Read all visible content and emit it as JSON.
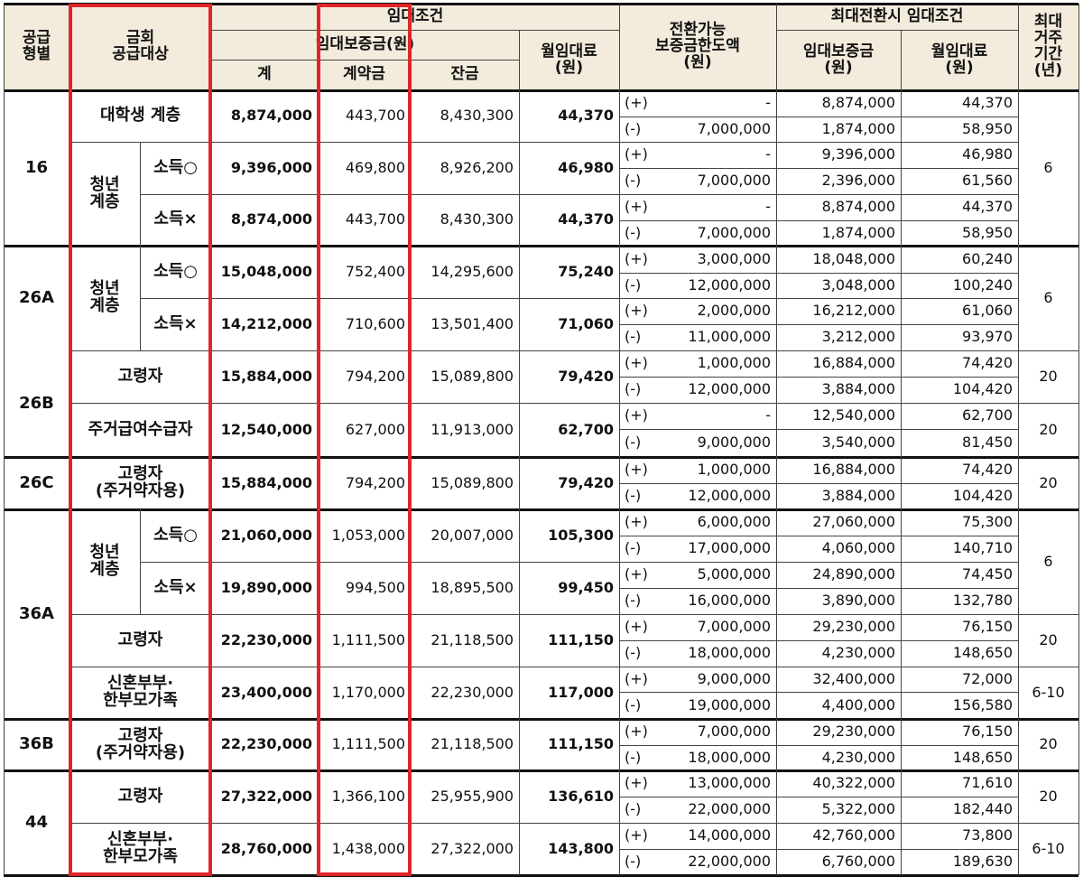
{
  "headers": {
    "supply_type": "공급\n형별",
    "supply_target": "금회\n공급대상",
    "lease_conditions": "임대조건",
    "deposit": "임대보증금(원)",
    "total": "계",
    "down_payment": "계약금",
    "balance": "잔금",
    "monthly_rent": "월임대료\n(원)",
    "convertible_limit": "전환가능\n보증금한도액\n(원)",
    "max_conversion": "최대전환시  임대조건",
    "conv_deposit": "임대보증금\n(원)",
    "conv_rent": "월임대료\n(원)",
    "max_period": "최대\n거주\n기간\n(년)"
  },
  "type_labels": {
    "t16": "16",
    "t26a": "26A",
    "t26b": "26B",
    "t26c": "26C",
    "t36a": "36A",
    "t36b": "36B",
    "t44": "44"
  },
  "target_labels": {
    "college": "대학생  계층",
    "youth": "청년\n계층",
    "income_yes": "소득○",
    "income_no": "소득×",
    "elderly": "고령자",
    "housing_benefit": "주거급여수급자",
    "elderly_housing": "고령자\n(주거약자용)",
    "newlywed": "신혼부부·\n한부모가족"
  },
  "groups": [
    {
      "total": "8,874,000",
      "down": "443,700",
      "balance": "8,430,300",
      "rent": "44,370"
    },
    {
      "total": "9,396,000",
      "down": "469,800",
      "balance": "8,926,200",
      "rent": "46,980"
    },
    {
      "total": "8,874,000",
      "down": "443,700",
      "balance": "8,430,300",
      "rent": "44,370"
    },
    {
      "total": "15,048,000",
      "down": "752,400",
      "balance": "14,295,600",
      "rent": "75,240"
    },
    {
      "total": "14,212,000",
      "down": "710,600",
      "balance": "13,501,400",
      "rent": "71,060"
    },
    {
      "total": "15,884,000",
      "down": "794,200",
      "balance": "15,089,800",
      "rent": "79,420"
    },
    {
      "total": "12,540,000",
      "down": "627,000",
      "balance": "11,913,000",
      "rent": "62,700"
    },
    {
      "total": "15,884,000",
      "down": "794,200",
      "balance": "15,089,800",
      "rent": "79,420"
    },
    {
      "total": "21,060,000",
      "down": "1,053,000",
      "balance": "20,007,000",
      "rent": "105,300"
    },
    {
      "total": "19,890,000",
      "down": "994,500",
      "balance": "18,895,500",
      "rent": "99,450"
    },
    {
      "total": "22,230,000",
      "down": "1,111,500",
      "balance": "21,118,500",
      "rent": "111,150"
    },
    {
      "total": "23,400,000",
      "down": "1,170,000",
      "balance": "22,230,000",
      "rent": "117,000"
    },
    {
      "total": "22,230,000",
      "down": "1,111,500",
      "balance": "21,118,500",
      "rent": "111,150"
    },
    {
      "total": "27,322,000",
      "down": "1,366,100",
      "balance": "25,955,900",
      "rent": "136,610"
    },
    {
      "total": "28,760,000",
      "down": "1,438,000",
      "balance": "27,322,000",
      "rent": "143,800"
    }
  ],
  "subrows": [
    {
      "sign": "(+)",
      "limit": "-",
      "deposit": "8,874,000",
      "rent": "44,370"
    },
    {
      "sign": "(-)",
      "limit": "7,000,000",
      "deposit": "1,874,000",
      "rent": "58,950"
    },
    {
      "sign": "(+)",
      "limit": "-",
      "deposit": "9,396,000",
      "rent": "46,980"
    },
    {
      "sign": "(-)",
      "limit": "7,000,000",
      "deposit": "2,396,000",
      "rent": "61,560"
    },
    {
      "sign": "(+)",
      "limit": "-",
      "deposit": "8,874,000",
      "rent": "44,370"
    },
    {
      "sign": "(-)",
      "limit": "7,000,000",
      "deposit": "1,874,000",
      "rent": "58,950"
    },
    {
      "sign": "(+)",
      "limit": "3,000,000",
      "deposit": "18,048,000",
      "rent": "60,240"
    },
    {
      "sign": "(-)",
      "limit": "12,000,000",
      "deposit": "3,048,000",
      "rent": "100,240"
    },
    {
      "sign": "(+)",
      "limit": "2,000,000",
      "deposit": "16,212,000",
      "rent": "61,060"
    },
    {
      "sign": "(-)",
      "limit": "11,000,000",
      "deposit": "3,212,000",
      "rent": "93,970"
    },
    {
      "sign": "(+)",
      "limit": "1,000,000",
      "deposit": "16,884,000",
      "rent": "74,420"
    },
    {
      "sign": "(-)",
      "limit": "12,000,000",
      "deposit": "3,884,000",
      "rent": "104,420"
    },
    {
      "sign": "(+)",
      "limit": "-",
      "deposit": "12,540,000",
      "rent": "62,700"
    },
    {
      "sign": "(-)",
      "limit": "9,000,000",
      "deposit": "3,540,000",
      "rent": "81,450"
    },
    {
      "sign": "(+)",
      "limit": "1,000,000",
      "deposit": "16,884,000",
      "rent": "74,420"
    },
    {
      "sign": "(-)",
      "limit": "12,000,000",
      "deposit": "3,884,000",
      "rent": "104,420"
    },
    {
      "sign": "(+)",
      "limit": "6,000,000",
      "deposit": "27,060,000",
      "rent": "75,300"
    },
    {
      "sign": "(-)",
      "limit": "17,000,000",
      "deposit": "4,060,000",
      "rent": "140,710"
    },
    {
      "sign": "(+)",
      "limit": "5,000,000",
      "deposit": "24,890,000",
      "rent": "74,450"
    },
    {
      "sign": "(-)",
      "limit": "16,000,000",
      "deposit": "3,890,000",
      "rent": "132,780"
    },
    {
      "sign": "(+)",
      "limit": "7,000,000",
      "deposit": "29,230,000",
      "rent": "76,150"
    },
    {
      "sign": "(-)",
      "limit": "18,000,000",
      "deposit": "4,230,000",
      "rent": "148,650"
    },
    {
      "sign": "(+)",
      "limit": "9,000,000",
      "deposit": "32,400,000",
      "rent": "72,000"
    },
    {
      "sign": "(-)",
      "limit": "19,000,000",
      "deposit": "4,400,000",
      "rent": "156,580"
    },
    {
      "sign": "(+)",
      "limit": "7,000,000",
      "deposit": "29,230,000",
      "rent": "76,150"
    },
    {
      "sign": "(-)",
      "limit": "18,000,000",
      "deposit": "4,230,000",
      "rent": "148,650"
    },
    {
      "sign": "(+)",
      "limit": "13,000,000",
      "deposit": "40,322,000",
      "rent": "71,610"
    },
    {
      "sign": "(-)",
      "limit": "22,000,000",
      "deposit": "5,322,000",
      "rent": "182,440"
    },
    {
      "sign": "(+)",
      "limit": "14,000,000",
      "deposit": "42,760,000",
      "rent": "73,800"
    },
    {
      "sign": "(-)",
      "limit": "22,000,000",
      "deposit": "6,760,000",
      "rent": "189,630"
    }
  ],
  "periods": [
    "6",
    "6",
    "20",
    "20",
    "20",
    "6",
    "20",
    "6-10",
    "20",
    "20",
    "6-10"
  ],
  "highlight_color": "#e0242a",
  "header_bg": "#f3ebdc"
}
